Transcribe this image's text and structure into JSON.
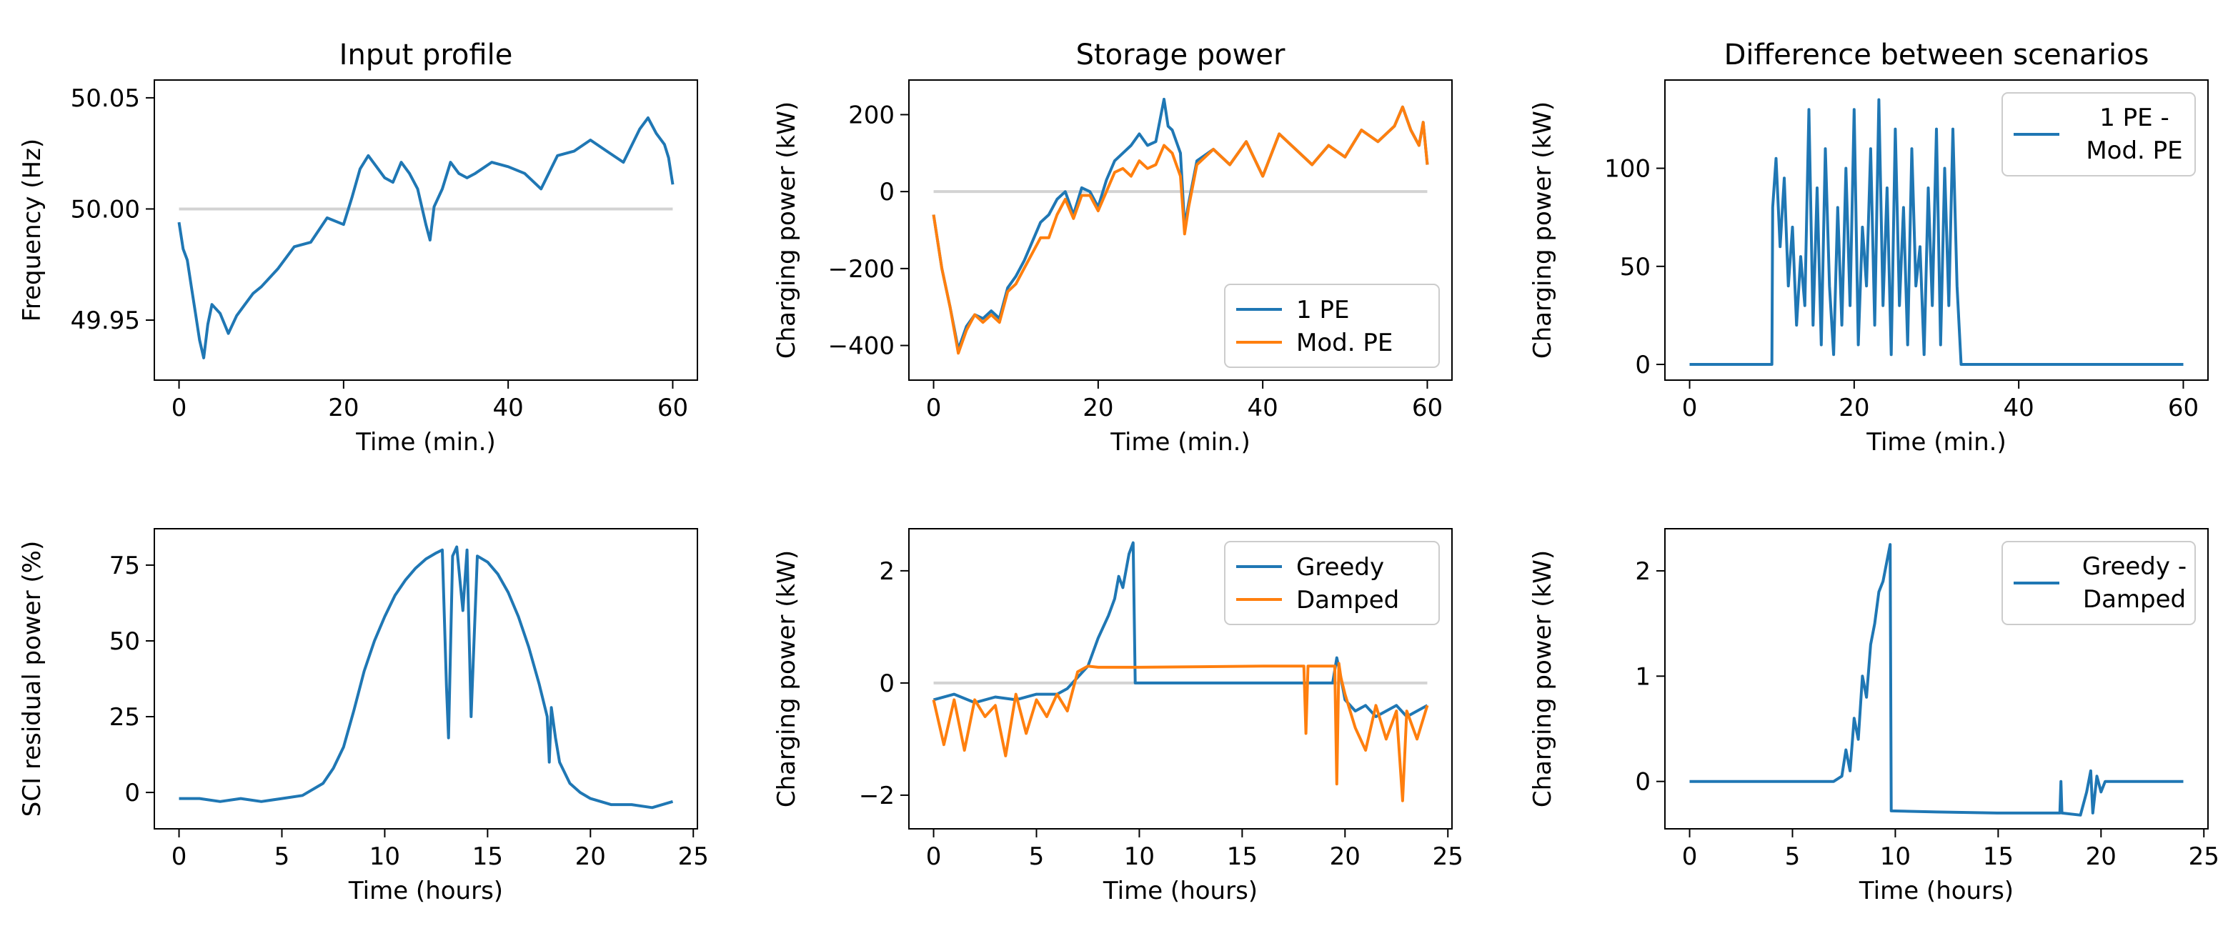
{
  "colors": {
    "blue": "#1f77b4",
    "orange": "#ff7f0e",
    "reference": "#d3d3d3",
    "axes": "#000000"
  },
  "chart_data": [
    {
      "id": "p1",
      "type": "line",
      "title": "Input profile",
      "xlabel": "Time (min.)",
      "ylabel": "Frequency (Hz)",
      "xlim": [
        -3,
        63
      ],
      "ylim": [
        49.923,
        50.058
      ],
      "xticks": [
        0,
        20,
        40,
        60
      ],
      "yticks": [
        49.95,
        50.0,
        50.05
      ],
      "ytick_labels": [
        "49.95",
        "50.00",
        "50.05"
      ],
      "reference_y": 50.0,
      "reference_x": [
        0,
        60
      ],
      "legend": null,
      "series": [
        {
          "name": "Frequency",
          "color": "blue",
          "x": [
            0,
            0.5,
            1,
            1.5,
            2,
            2.5,
            3,
            3.5,
            4,
            5,
            6,
            7,
            8,
            9,
            10,
            12,
            14,
            16,
            18,
            20,
            21,
            22,
            23,
            24,
            25,
            26,
            27,
            28,
            29,
            30,
            30.5,
            31,
            32,
            33,
            34,
            35,
            36,
            38,
            40,
            42,
            44,
            46,
            48,
            50,
            52,
            54,
            56,
            57,
            58,
            59,
            59.5,
            60
          ],
          "y": [
            49.994,
            49.982,
            49.977,
            49.965,
            49.953,
            49.941,
            49.933,
            49.948,
            49.957,
            49.953,
            49.944,
            49.952,
            49.957,
            49.962,
            49.965,
            49.973,
            49.983,
            49.985,
            49.996,
            49.993,
            50.005,
            50.018,
            50.024,
            50.019,
            50.014,
            50.012,
            50.021,
            50.016,
            50.009,
            49.993,
            49.986,
            50.001,
            50.009,
            50.021,
            50.016,
            50.014,
            50.016,
            50.021,
            50.019,
            50.016,
            50.009,
            50.024,
            50.026,
            50.031,
            50.026,
            50.021,
            50.036,
            50.041,
            50.034,
            50.029,
            50.023,
            50.011
          ]
        }
      ]
    },
    {
      "id": "p2",
      "type": "line",
      "title": "Storage power",
      "xlabel": "Time (min.)",
      "ylabel": "Charging power (kW)",
      "xlim": [
        -3,
        63
      ],
      "ylim": [
        -490,
        290
      ],
      "xticks": [
        0,
        20,
        40,
        60
      ],
      "yticks": [
        -400,
        -200,
        0,
        200
      ],
      "ytick_labels": [
        "−400",
        "−200",
        "0",
        "200"
      ],
      "reference_y": 0,
      "reference_x": [
        0,
        60
      ],
      "legend": {
        "location": "lower-right",
        "entries": [
          "1 PE",
          "Mod. PE"
        ]
      },
      "series": [
        {
          "name": "1 PE",
          "color": "blue",
          "x": [
            0,
            1,
            2,
            3,
            4,
            5,
            6,
            7,
            8,
            9,
            10,
            11,
            12,
            13,
            14,
            15,
            16,
            17,
            18,
            19,
            20,
            21,
            22,
            23,
            24,
            25,
            26,
            27,
            28,
            28.5,
            29,
            30,
            30.5,
            31,
            32,
            34,
            36,
            38,
            40,
            42,
            44,
            46,
            48,
            50,
            52,
            54,
            56,
            57,
            58,
            59,
            59.5,
            60
          ],
          "y": [
            -60,
            -200,
            -300,
            -410,
            -350,
            -320,
            -330,
            -310,
            -330,
            -250,
            -220,
            -180,
            -130,
            -80,
            -60,
            -20,
            0,
            -60,
            10,
            0,
            -40,
            30,
            80,
            100,
            120,
            150,
            120,
            130,
            240,
            170,
            160,
            100,
            -90,
            -30,
            80,
            110,
            70,
            130,
            40,
            150,
            110,
            70,
            120,
            90,
            160,
            130,
            170,
            220,
            160,
            120,
            180,
            70
          ]
        },
        {
          "name": "Mod. PE",
          "color": "orange",
          "x": [
            0,
            1,
            2,
            3,
            4,
            5,
            6,
            7,
            8,
            9,
            10,
            11,
            12,
            13,
            14,
            15,
            16,
            17,
            18,
            19,
            20,
            21,
            22,
            23,
            24,
            25,
            26,
            27,
            28,
            29,
            30,
            30.5,
            31,
            32,
            34,
            36,
            38,
            40,
            42,
            44,
            46,
            48,
            50,
            52,
            54,
            56,
            57,
            58,
            59,
            59.5,
            60
          ],
          "y": [
            -60,
            -200,
            -300,
            -420,
            -360,
            -320,
            -340,
            -320,
            -340,
            -260,
            -240,
            -200,
            -160,
            -120,
            -120,
            -60,
            -20,
            -70,
            -10,
            -10,
            -50,
            0,
            50,
            60,
            40,
            80,
            60,
            70,
            120,
            100,
            40,
            -110,
            -40,
            70,
            110,
            70,
            130,
            40,
            150,
            110,
            70,
            120,
            90,
            160,
            130,
            170,
            220,
            160,
            120,
            180,
            70
          ]
        }
      ]
    },
    {
      "id": "p3",
      "type": "line",
      "title": "Difference between scenarios",
      "xlabel": "Time (min.)",
      "ylabel": "Charging power (kW)",
      "xlim": [
        -3,
        63
      ],
      "ylim": [
        -8,
        145
      ],
      "xticks": [
        0,
        20,
        40,
        60
      ],
      "yticks": [
        0,
        50,
        100
      ],
      "ytick_labels": [
        "0",
        "50",
        "100"
      ],
      "reference_y": null,
      "reference_x": [
        0,
        60
      ],
      "legend": {
        "location": "upper-right",
        "entries": [
          "1 PE - Mod. PE"
        ],
        "entry_lines": [
          "1 PE -",
          "Mod. PE"
        ]
      },
      "series": [
        {
          "name": "1 PE - Mod. PE",
          "color": "blue",
          "x": [
            0,
            10,
            10.1,
            10.5,
            11,
            11.5,
            12,
            12.5,
            13,
            13.5,
            14,
            14.5,
            15,
            15.5,
            16,
            16.5,
            17,
            17.5,
            18,
            18.5,
            19,
            19.5,
            20,
            20.5,
            21,
            21.5,
            22,
            22.5,
            23,
            23.5,
            24,
            24.5,
            25,
            25.5,
            26,
            26.5,
            27,
            27.5,
            28,
            28.5,
            29,
            29.5,
            30,
            30.5,
            31,
            31.5,
            32,
            32.5,
            33,
            60
          ],
          "y": [
            0,
            0,
            80,
            105,
            60,
            95,
            40,
            70,
            20,
            55,
            30,
            130,
            20,
            90,
            10,
            110,
            40,
            5,
            80,
            20,
            100,
            30,
            130,
            10,
            70,
            40,
            110,
            20,
            135,
            30,
            90,
            5,
            120,
            30,
            80,
            10,
            110,
            40,
            60,
            5,
            90,
            30,
            120,
            10,
            100,
            30,
            120,
            40,
            0,
            0
          ]
        }
      ]
    },
    {
      "id": "p4",
      "type": "line",
      "title": "",
      "xlabel": "Time (hours)",
      "ylabel": "SCI residual power (%)",
      "xlim": [
        -1.2,
        25.2
      ],
      "ylim": [
        -12,
        87
      ],
      "xticks": [
        0,
        5,
        10,
        15,
        20,
        25
      ],
      "yticks": [
        0,
        25,
        50,
        75
      ],
      "ytick_labels": [
        "0",
        "25",
        "50",
        "75"
      ],
      "reference_y": null,
      "reference_x": [
        0,
        24
      ],
      "legend": null,
      "series": [
        {
          "name": "SCI residual power",
          "color": "blue",
          "x": [
            0,
            1,
            2,
            3,
            4,
            5,
            6,
            7,
            7.5,
            8,
            8.5,
            9,
            9.5,
            10,
            10.5,
            11,
            11.5,
            12,
            12.5,
            12.8,
            13,
            13.1,
            13.3,
            13.5,
            13.8,
            14,
            14.2,
            14.5,
            15,
            15.5,
            16,
            16.5,
            17,
            17.5,
            17.9,
            18,
            18.1,
            18.3,
            18.5,
            19,
            19.5,
            20,
            20.5,
            21,
            22,
            23,
            24
          ],
          "y": [
            -2,
            -2,
            -3,
            -2,
            -3,
            -2,
            -1,
            3,
            8,
            15,
            27,
            40,
            50,
            58,
            65,
            70,
            74,
            77,
            79,
            80,
            35,
            18,
            78,
            81,
            60,
            80,
            25,
            78,
            76,
            72,
            66,
            58,
            48,
            36,
            25,
            10,
            28,
            18,
            10,
            3,
            0,
            -2,
            -3,
            -4,
            -4,
            -5,
            -3
          ]
        }
      ]
    },
    {
      "id": "p5",
      "type": "line",
      "title": "",
      "xlabel": "Time (hours)",
      "ylabel": "Charging power (kW)",
      "xlim": [
        -1.2,
        25.2
      ],
      "ylim": [
        -2.6,
        2.75
      ],
      "xticks": [
        0,
        5,
        10,
        15,
        20,
        25
      ],
      "yticks": [
        -2,
        0,
        2
      ],
      "ytick_labels": [
        "−2",
        "0",
        "2"
      ],
      "reference_y": 0,
      "reference_x": [
        0,
        24
      ],
      "legend": {
        "location": "upper-right",
        "entries": [
          "Greedy",
          "Damped"
        ]
      },
      "series": [
        {
          "name": "Greedy",
          "color": "blue",
          "x": [
            0,
            1,
            2,
            3,
            4,
            5,
            6,
            6.5,
            7,
            7.5,
            8,
            8.5,
            8.8,
            9,
            9.2,
            9.5,
            9.7,
            9.8,
            12,
            15,
            18,
            19.4,
            19.6,
            19.8,
            20,
            20.5,
            21,
            21.5,
            22,
            22.5,
            23,
            23.5,
            24
          ],
          "y": [
            -0.3,
            -0.2,
            -0.35,
            -0.25,
            -0.3,
            -0.2,
            -0.2,
            -0.1,
            0.1,
            0.3,
            0.8,
            1.2,
            1.5,
            1.9,
            1.7,
            2.3,
            2.5,
            0.0,
            0.0,
            0.0,
            0.0,
            0.0,
            0.45,
            0.1,
            -0.3,
            -0.5,
            -0.4,
            -0.6,
            -0.5,
            -0.4,
            -0.6,
            -0.5,
            -0.4
          ]
        },
        {
          "name": "Damped",
          "color": "orange",
          "x": [
            0,
            0.5,
            1,
            1.5,
            2,
            2.5,
            3,
            3.5,
            4,
            4.5,
            5,
            5.5,
            6,
            6.5,
            7,
            7.5,
            8,
            10,
            13,
            16,
            18,
            18.1,
            18.2,
            19,
            19.5,
            19.6,
            19.7,
            19.8,
            20,
            20.5,
            21,
            21.5,
            22,
            22.5,
            22.8,
            23,
            23.5,
            24
          ],
          "y": [
            -0.3,
            -1.1,
            -0.3,
            -1.2,
            -0.3,
            -0.6,
            -0.4,
            -1.3,
            -0.2,
            -0.9,
            -0.3,
            -0.6,
            -0.2,
            -0.5,
            0.2,
            0.3,
            0.28,
            0.28,
            0.29,
            0.3,
            0.3,
            -0.9,
            0.3,
            0.3,
            0.3,
            -1.8,
            0.35,
            0.1,
            -0.2,
            -0.8,
            -1.2,
            -0.4,
            -1.0,
            -0.5,
            -2.1,
            -0.5,
            -1.0,
            -0.4
          ]
        }
      ]
    },
    {
      "id": "p6",
      "type": "line",
      "title": "",
      "xlabel": "Time (hours)",
      "ylabel": "Charging power (kW)",
      "xlim": [
        -1.2,
        25.2
      ],
      "ylim": [
        -0.45,
        2.4
      ],
      "xticks": [
        0,
        5,
        10,
        15,
        20,
        25
      ],
      "yticks": [
        0,
        1,
        2
      ],
      "ytick_labels": [
        "0",
        "1",
        "2"
      ],
      "reference_y": null,
      "reference_x": [
        0,
        24
      ],
      "legend": {
        "location": "upper-right",
        "entries": [
          "Greedy - Damped"
        ],
        "entry_lines": [
          "Greedy -",
          "Damped"
        ]
      },
      "series": [
        {
          "name": "Greedy - Damped",
          "color": "blue",
          "x": [
            0,
            7,
            7.4,
            7.6,
            7.8,
            8,
            8.2,
            8.4,
            8.6,
            8.8,
            9,
            9.2,
            9.4,
            9.6,
            9.75,
            9.8,
            12,
            15,
            18,
            18.05,
            18.1,
            19,
            19.3,
            19.5,
            19.6,
            19.8,
            20,
            20.2,
            24
          ],
          "y": [
            0,
            0,
            0.05,
            0.3,
            0.1,
            0.6,
            0.4,
            1.0,
            0.8,
            1.3,
            1.5,
            1.8,
            1.9,
            2.1,
            2.25,
            -0.28,
            -0.29,
            -0.3,
            -0.3,
            0.0,
            -0.3,
            -0.32,
            -0.1,
            0.1,
            -0.3,
            0.05,
            -0.1,
            0.0,
            0.0
          ]
        }
      ]
    }
  ]
}
